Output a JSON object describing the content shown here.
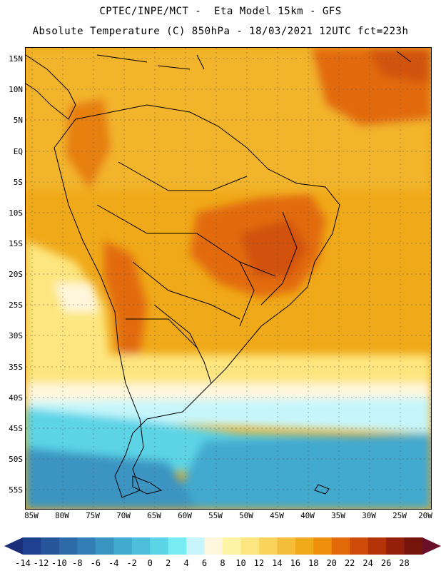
{
  "header": {
    "line1": "CPTEC/INPE/MCT -  Eta Model 15km - GFS",
    "line2": "Absolute Temperature (C) 850hPa - 18/03/2021 12UTC fct=223h"
  },
  "lat_labels": [
    "15N",
    "10N",
    "5N",
    "EQ",
    "5S",
    "10S",
    "15S",
    "20S",
    "25S",
    "30S",
    "35S",
    "40S",
    "45S",
    "50S",
    "55S"
  ],
  "lon_labels": [
    "85W",
    "80W",
    "75W",
    "70W",
    "65W",
    "60W",
    "55W",
    "50W",
    "45W",
    "40W",
    "35W",
    "30W",
    "25W",
    "20W"
  ],
  "colorbar": {
    "labels": [
      "-14",
      "-12",
      "-10",
      "-8",
      "-6",
      "-4",
      "-2",
      "0",
      "2",
      "4",
      "6",
      "8",
      "10",
      "12",
      "14",
      "16",
      "18",
      "20",
      "22",
      "24",
      "26",
      "28"
    ],
    "colors": [
      "#1f3f8f",
      "#26559b",
      "#2c6aa8",
      "#327fb5",
      "#3a94c2",
      "#42a9cf",
      "#4cbedb",
      "#5bd4e6",
      "#78ecf3",
      "#c6f6fb",
      "#fff7dd",
      "#fff3a6",
      "#fde67f",
      "#f9d35b",
      "#f4be3a",
      "#f0a919",
      "#ee8f0b",
      "#e26a08",
      "#ce4c07",
      "#b33206",
      "#94200a",
      "#74140a"
    ],
    "low_arrow_color": "#1b2f78",
    "high_arrow_color": "#6a0f2a"
  },
  "map_colors": {
    "hot": "#ee8f0b",
    "warmer": "#e26a08",
    "hottest": "#ce4c07",
    "warm": "#f0a919",
    "mild": "#fde67f",
    "cool": "#fff7dd",
    "cold1": "#c6f6fb",
    "cold2": "#5bd4e6",
    "cold3": "#42a9cf",
    "cold4": "#3a94c2"
  }
}
